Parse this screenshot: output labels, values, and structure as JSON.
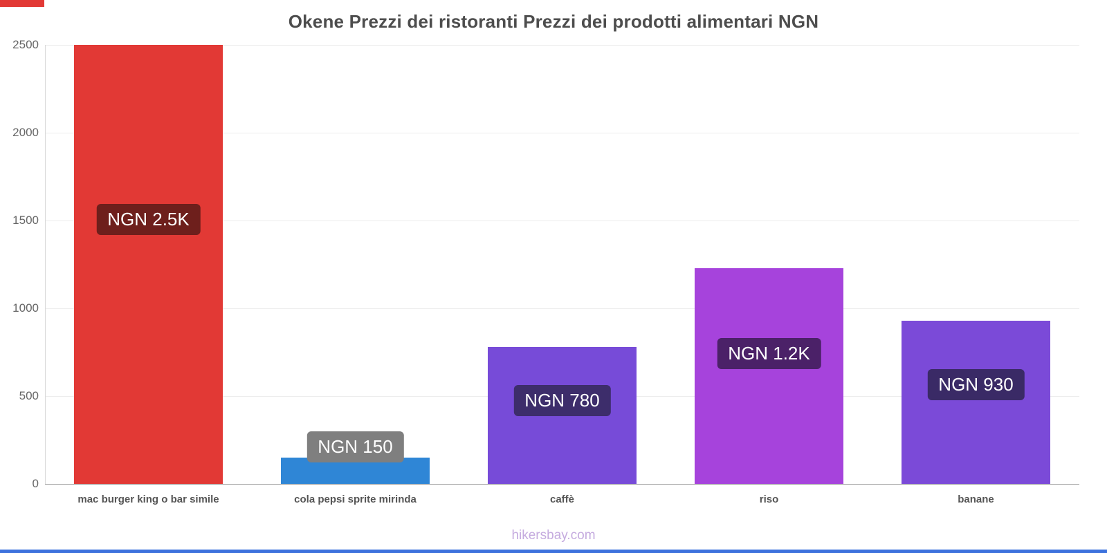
{
  "title": "Okene Prezzi dei ristoranti Prezzi dei prodotti alimentari NGN",
  "footer": {
    "link_label": "hikersbay.com"
  },
  "accents": {
    "top_left_color": "#e23935",
    "bottom_color": "#3d72dd"
  },
  "chart_data": {
    "type": "bar",
    "title": "Okene Prezzi dei ristoranti Prezzi dei prodotti alimentari NGN",
    "xlabel": "",
    "ylabel": "",
    "ylim": [
      0,
      2500
    ],
    "yticks": [
      0,
      500,
      1000,
      1500,
      2000,
      2500
    ],
    "grid": true,
    "legend": false,
    "categories": [
      "mac burger king o bar simile",
      "cola pepsi sprite mirinda",
      "caffè",
      "riso",
      "banane"
    ],
    "values": [
      2500,
      150,
      780,
      1230,
      930
    ],
    "value_labels": [
      "NGN 2.5K",
      "NGN 150",
      "NGN 780",
      "NGN 1.2K",
      "NGN 930"
    ],
    "bar_colors": [
      "#e23935",
      "#2f86d6",
      "#774bd8",
      "#a643dc",
      "#7b4ad8"
    ],
    "label_bg_colors": [
      "#6e1f1c",
      "#7f7f7f",
      "#3d2d6b",
      "#4b2168",
      "#3a2a66"
    ],
    "currency": "NGN"
  }
}
